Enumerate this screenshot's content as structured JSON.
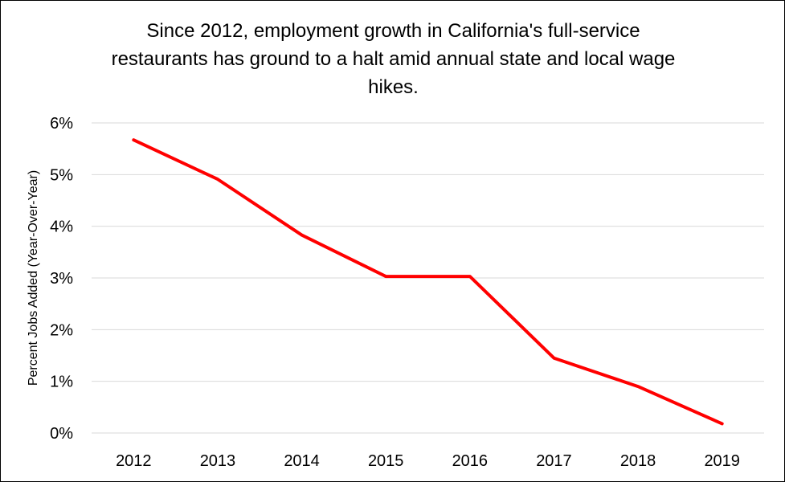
{
  "chart_data": {
    "type": "line",
    "title": "Since 2012, employment growth in California's full-service restaurants has ground to a halt amid annual state and local wage hikes.",
    "xlabel": "",
    "ylabel": "Percent Jobs Added (Year-Over-Year)",
    "categories": [
      "2012",
      "2013",
      "2014",
      "2015",
      "2016",
      "2017",
      "2018",
      "2019"
    ],
    "series": [
      {
        "values": [
          5.67,
          4.91,
          3.83,
          3.03,
          3.03,
          1.45,
          0.9,
          0.18
        ],
        "color": "#ff0000"
      }
    ],
    "ylim": [
      0,
      6
    ],
    "yticks": [
      0,
      1,
      2,
      3,
      4,
      5,
      6
    ],
    "ytick_labels": [
      "0%",
      "1%",
      "2%",
      "3%",
      "4%",
      "5%",
      "6%"
    ],
    "grid": true,
    "legend": "none"
  }
}
